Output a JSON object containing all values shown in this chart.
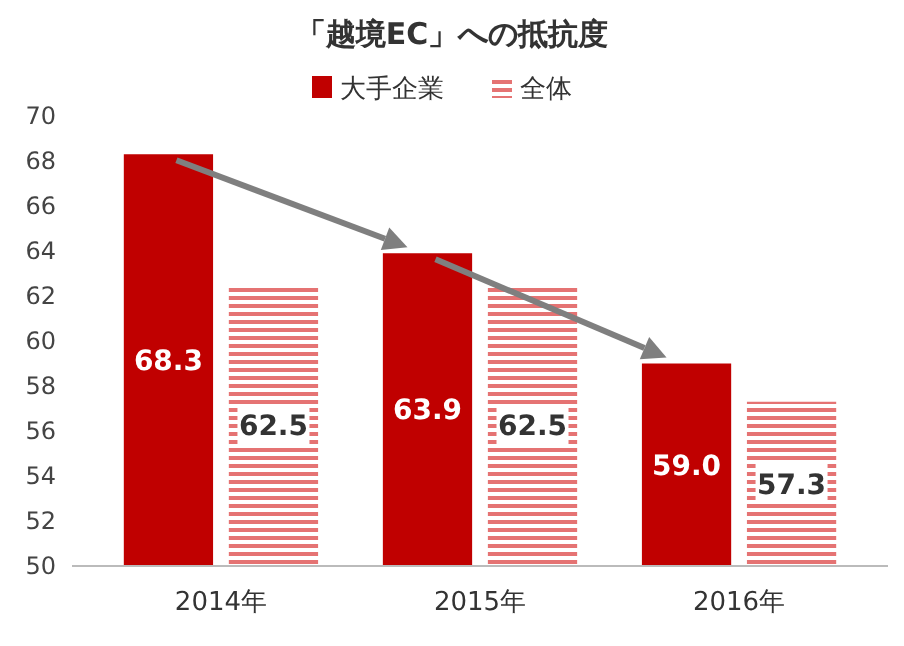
{
  "chart_data": {
    "type": "bar",
    "title": "「越境EC」への抵抗度",
    "categories": [
      "2014年",
      "2015年",
      "2016年"
    ],
    "series": [
      {
        "name": "大手企業",
        "color": "#c00000",
        "values": [
          68.3,
          63.9,
          59.0
        ],
        "value_labels": [
          "68.3",
          "63.9",
          "59.0"
        ]
      },
      {
        "name": "全体",
        "color": "#e57373",
        "values": [
          62.5,
          62.5,
          57.3
        ],
        "value_labels": [
          "62.5",
          "62.5",
          "57.3"
        ]
      }
    ],
    "ylim": [
      50,
      70
    ],
    "yticks": [
      50,
      52,
      54,
      56,
      58,
      60,
      62,
      64,
      66,
      68,
      70
    ],
    "legend": "top",
    "grid": false
  }
}
